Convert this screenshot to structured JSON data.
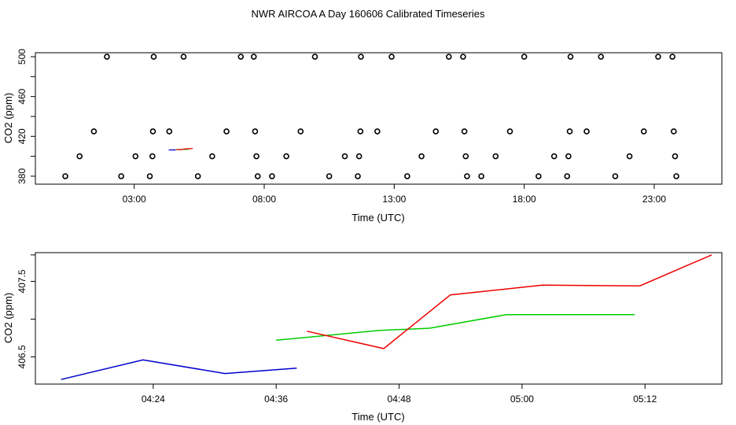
{
  "chart_data": [
    {
      "type": "scatter",
      "title": "NWR AIRCOA A  Day 160606  Calibrated Timeseries",
      "xlabel": "Time (UTC)",
      "ylabel": "CO2 (ppm)",
      "x_unit": "hours",
      "xlim": [
        -0.8,
        25.6
      ],
      "ylim": [
        372,
        504
      ],
      "x_ticks": [
        {
          "value": 3,
          "label": "03:00"
        },
        {
          "value": 8,
          "label": "08:00"
        },
        {
          "value": 13,
          "label": "13:00"
        },
        {
          "value": 18,
          "label": "18:00"
        },
        {
          "value": 23,
          "label": "23:00"
        }
      ],
      "y_ticks": [
        {
          "value": 380,
          "label": "380"
        },
        {
          "value": 400,
          "label": ""
        },
        {
          "value": 420,
          "label": "420"
        },
        {
          "value": 440,
          "label": ""
        },
        {
          "value": 460,
          "label": "460"
        },
        {
          "value": 480,
          "label": ""
        },
        {
          "value": 500,
          "label": "500"
        }
      ],
      "points": [
        {
          "x": 0.35,
          "y": 380
        },
        {
          "x": 0.9,
          "y": 400
        },
        {
          "x": 1.45,
          "y": 425
        },
        {
          "x": 1.95,
          "y": 500
        },
        {
          "x": 2.5,
          "y": 380
        },
        {
          "x": 3.05,
          "y": 400
        },
        {
          "x": 3.6,
          "y": 380
        },
        {
          "x": 3.7,
          "y": 400
        },
        {
          "x": 3.72,
          "y": 425
        },
        {
          "x": 3.75,
          "y": 500
        },
        {
          "x": 4.35,
          "y": 425
        },
        {
          "x": 4.9,
          "y": 500
        },
        {
          "x": 5.45,
          "y": 380
        },
        {
          "x": 6.0,
          "y": 400
        },
        {
          "x": 6.55,
          "y": 425
        },
        {
          "x": 7.1,
          "y": 500
        },
        {
          "x": 7.6,
          "y": 500
        },
        {
          "x": 7.65,
          "y": 425
        },
        {
          "x": 7.7,
          "y": 400
        },
        {
          "x": 7.75,
          "y": 380
        },
        {
          "x": 8.3,
          "y": 380
        },
        {
          "x": 8.85,
          "y": 400
        },
        {
          "x": 9.4,
          "y": 425
        },
        {
          "x": 9.95,
          "y": 500
        },
        {
          "x": 10.5,
          "y": 380
        },
        {
          "x": 11.1,
          "y": 400
        },
        {
          "x": 11.6,
          "y": 380
        },
        {
          "x": 11.65,
          "y": 400
        },
        {
          "x": 11.7,
          "y": 425
        },
        {
          "x": 11.72,
          "y": 500
        },
        {
          "x": 12.35,
          "y": 425
        },
        {
          "x": 12.9,
          "y": 500
        },
        {
          "x": 13.5,
          "y": 380
        },
        {
          "x": 14.05,
          "y": 400
        },
        {
          "x": 14.6,
          "y": 425
        },
        {
          "x": 15.1,
          "y": 500
        },
        {
          "x": 15.65,
          "y": 500
        },
        {
          "x": 15.7,
          "y": 425
        },
        {
          "x": 15.75,
          "y": 400
        },
        {
          "x": 15.8,
          "y": 380
        },
        {
          "x": 16.35,
          "y": 380
        },
        {
          "x": 16.9,
          "y": 400
        },
        {
          "x": 17.45,
          "y": 425
        },
        {
          "x": 18.0,
          "y": 500
        },
        {
          "x": 18.55,
          "y": 380
        },
        {
          "x": 19.15,
          "y": 400
        },
        {
          "x": 19.65,
          "y": 380
        },
        {
          "x": 19.7,
          "y": 400
        },
        {
          "x": 19.75,
          "y": 425
        },
        {
          "x": 19.78,
          "y": 500
        },
        {
          "x": 20.4,
          "y": 425
        },
        {
          "x": 20.95,
          "y": 500
        },
        {
          "x": 21.5,
          "y": 380
        },
        {
          "x": 22.05,
          "y": 400
        },
        {
          "x": 22.6,
          "y": 425
        },
        {
          "x": 23.15,
          "y": 500
        },
        {
          "x": 23.7,
          "y": 500
        },
        {
          "x": 23.75,
          "y": 425
        },
        {
          "x": 23.8,
          "y": 400
        },
        {
          "x": 23.85,
          "y": 380
        }
      ],
      "series": [
        {
          "name": "blue",
          "color": "#0000cc",
          "x": [
            4.33,
            4.53,
            4.6
          ],
          "y": [
            406.35,
            406.46,
            406.4
          ]
        },
        {
          "name": "green",
          "color": "#00cc00",
          "x": [
            4.6,
            4.82,
            5.1
          ],
          "y": [
            406.72,
            406.82,
            407.05
          ]
        },
        {
          "name": "red",
          "color": "#ee0000",
          "x": [
            4.62,
            4.8,
            4.93,
            5.25
          ],
          "y": [
            406.87,
            406.6,
            407.3,
            407.87
          ]
        }
      ]
    },
    {
      "type": "line",
      "title": "",
      "xlabel": "Time (UTC)",
      "ylabel": "CO2 (ppm)",
      "x_unit": "minutes after 04:00",
      "xlim": [
        12.5,
        79.5
      ],
      "ylim": [
        406.14,
        407.88
      ],
      "x_ticks": [
        {
          "value": 24,
          "label": "04:24"
        },
        {
          "value": 36,
          "label": "04:36"
        },
        {
          "value": 48,
          "label": "04:48"
        },
        {
          "value": 60,
          "label": "05:00"
        },
        {
          "value": 72,
          "label": "05:12"
        }
      ],
      "y_ticks": [
        {
          "value": 406.5,
          "label": "406.5"
        },
        {
          "value": 407.0,
          "label": ""
        },
        {
          "value": 407.5,
          "label": "407.5"
        },
        {
          "value": 407.85,
          "label": ""
        }
      ],
      "series": [
        {
          "name": "blue",
          "color": "#0000cc",
          "x": [
            15,
            23,
            31,
            38
          ],
          "y": [
            406.2,
            406.46,
            406.28,
            406.35
          ]
        },
        {
          "name": "green",
          "color": "#00cc00",
          "x": [
            36,
            46,
            51,
            58.5,
            71
          ],
          "y": [
            406.72,
            406.85,
            406.88,
            407.06,
            407.06
          ]
        },
        {
          "name": "red",
          "color": "#ee0000",
          "x": [
            39,
            46.5,
            53,
            62,
            71.5,
            78.5
          ],
          "y": [
            406.84,
            406.61,
            407.32,
            407.45,
            407.44,
            407.85
          ]
        }
      ]
    }
  ]
}
